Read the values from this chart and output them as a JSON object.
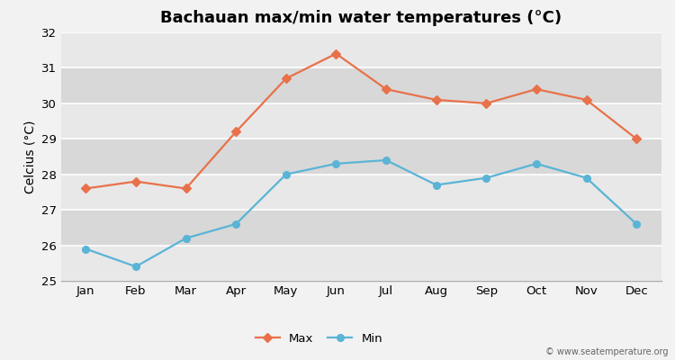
{
  "title": "Bachauan max/min water temperatures (°C)",
  "ylabel": "Celcius (°C)",
  "months": [
    "Jan",
    "Feb",
    "Mar",
    "Apr",
    "May",
    "Jun",
    "Jul",
    "Aug",
    "Sep",
    "Oct",
    "Nov",
    "Dec"
  ],
  "max_temps": [
    27.6,
    27.8,
    27.6,
    29.2,
    30.7,
    31.4,
    30.4,
    30.1,
    30.0,
    30.4,
    30.1,
    29.0
  ],
  "min_temps": [
    25.9,
    25.4,
    26.2,
    26.6,
    28.0,
    28.3,
    28.4,
    27.7,
    27.9,
    28.3,
    27.9,
    26.6
  ],
  "max_color": "#e8714a",
  "min_color": "#5ab4d6",
  "bg_color": "#f2f2f2",
  "plot_bg_even": "#e8e8e8",
  "plot_bg_odd": "#d8d8d8",
  "grid_color": "#ffffff",
  "ylim": [
    25,
    32
  ],
  "yticks": [
    25,
    26,
    27,
    28,
    29,
    30,
    31,
    32
  ],
  "title_fontsize": 13,
  "axis_label_fontsize": 10,
  "tick_fontsize": 9.5,
  "legend_labels": [
    "Max",
    "Min"
  ],
  "watermark": "© www.seatemperature.org"
}
